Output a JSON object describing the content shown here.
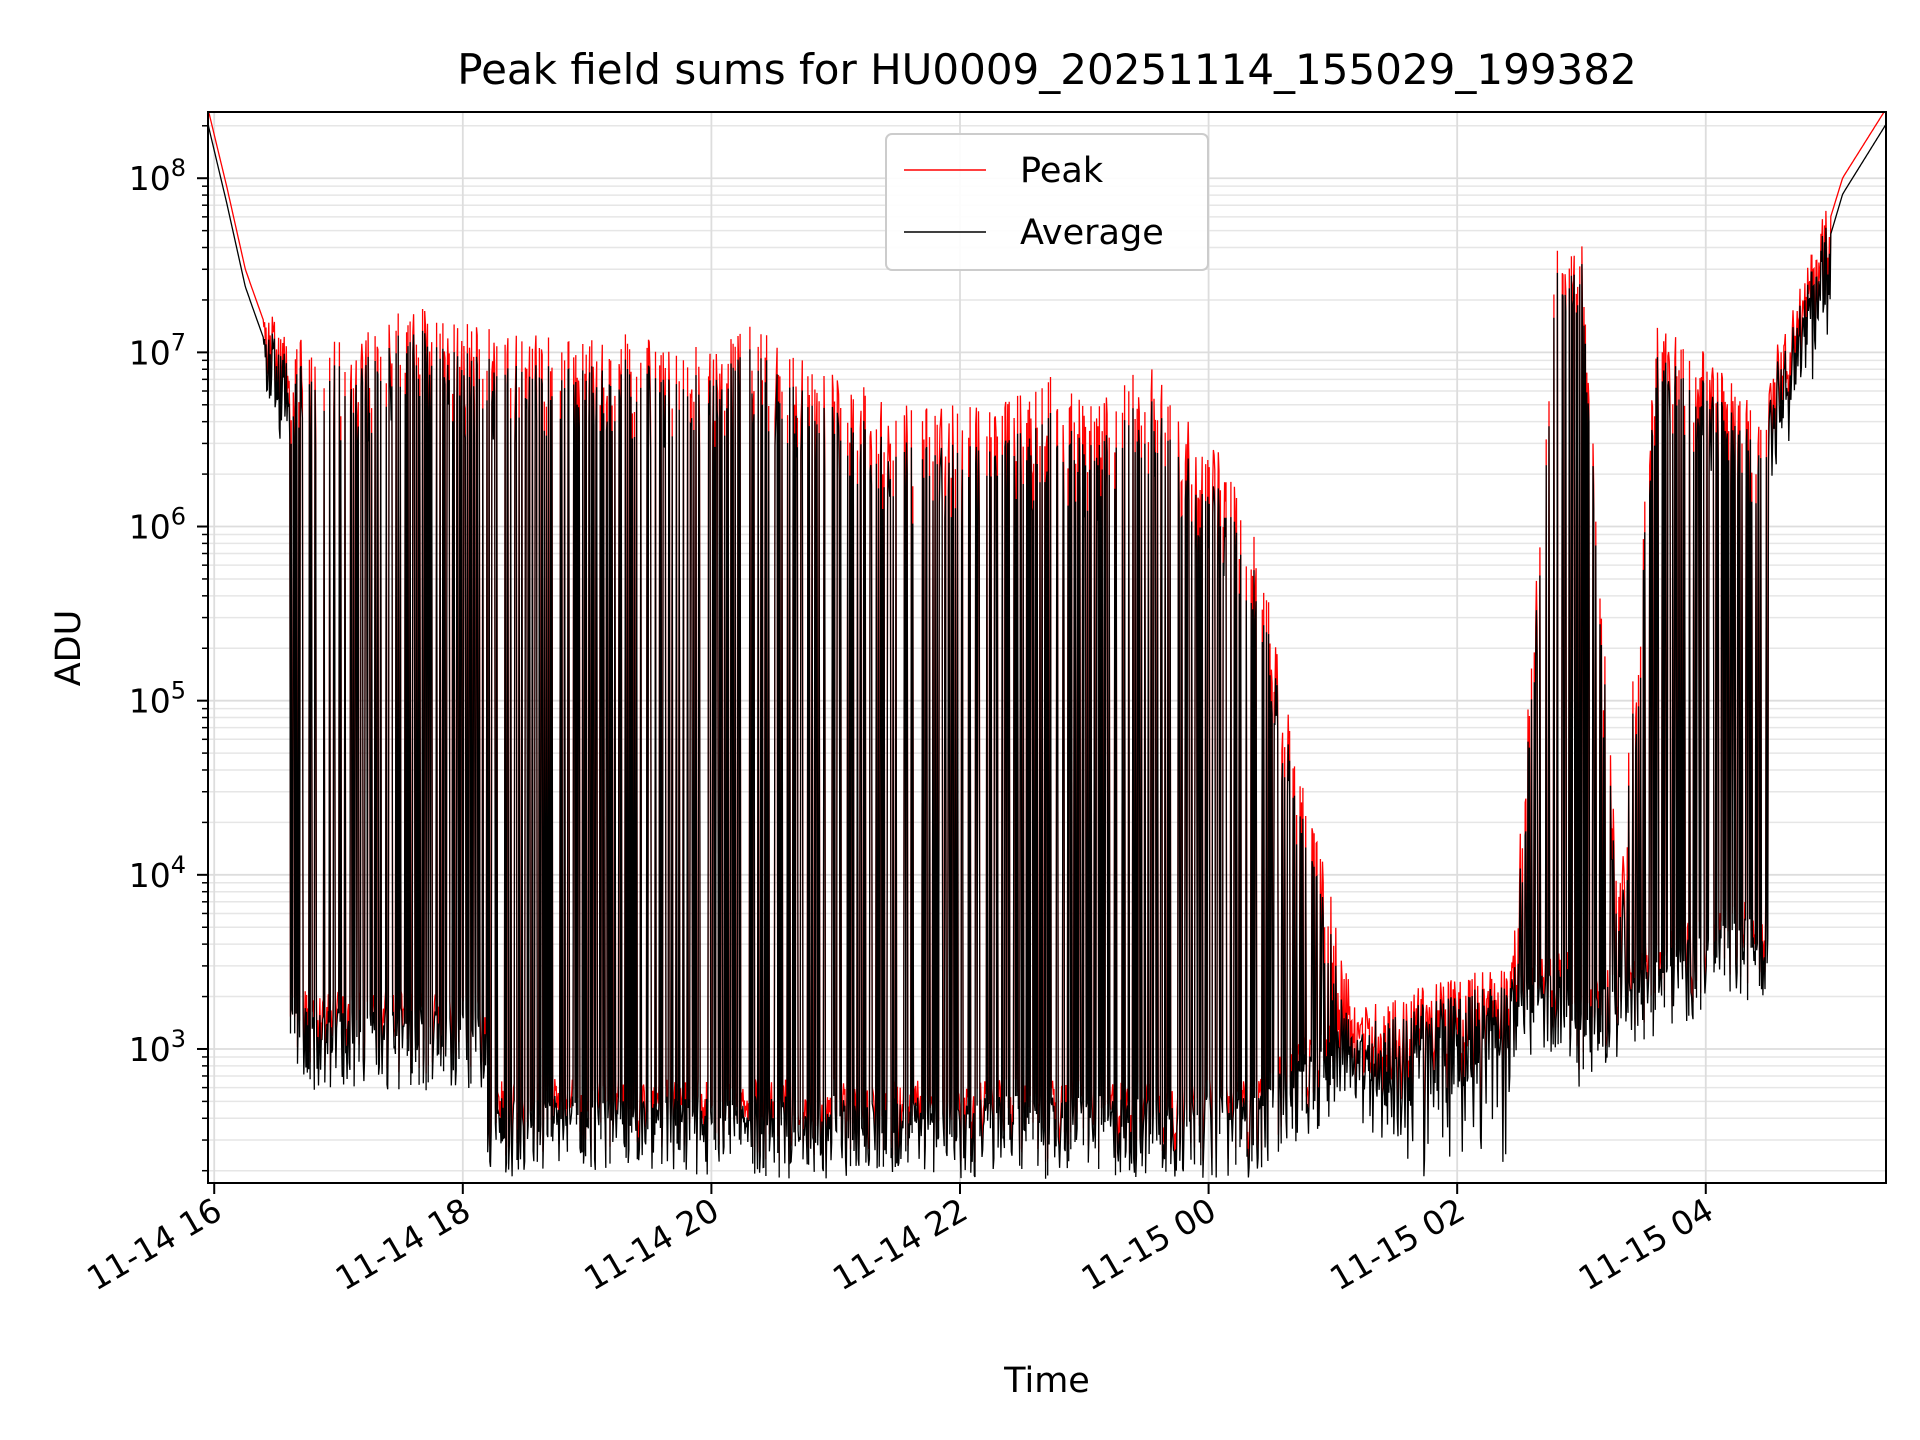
{
  "chart_data": {
    "type": "line",
    "title": "Peak field sums for HU0009_20251114_155029_199382",
    "xlabel": "Time",
    "ylabel": "ADU",
    "yscale": "log",
    "ylim": [
      170,
      240000000
    ],
    "xlim_hours": [
      15.95,
      29.45
    ],
    "grid": true,
    "legend_position": "top-center",
    "x_ticks": [
      {
        "hour": 16,
        "label": "11-14 16"
      },
      {
        "hour": 18,
        "label": "11-14 18"
      },
      {
        "hour": 20,
        "label": "11-14 20"
      },
      {
        "hour": 22,
        "label": "11-14 22"
      },
      {
        "hour": 24,
        "label": "11-15 00"
      },
      {
        "hour": 26,
        "label": "11-15 02"
      },
      {
        "hour": 28,
        "label": "11-15 04"
      }
    ],
    "y_ticks": [
      {
        "value": 1000,
        "base": "10",
        "exp": "3"
      },
      {
        "value": 10000,
        "base": "10",
        "exp": "4"
      },
      {
        "value": 100000,
        "base": "10",
        "exp": "5"
      },
      {
        "value": 1000000,
        "base": "10",
        "exp": "6"
      },
      {
        "value": 10000000,
        "base": "10",
        "exp": "7"
      },
      {
        "value": 100000000,
        "base": "10",
        "exp": "8"
      }
    ],
    "series": [
      {
        "name": "Peak",
        "color": "#ff0000",
        "points": [
          [
            15.95,
            250000000
          ],
          [
            16.1,
            90000000
          ],
          [
            16.25,
            30000000
          ],
          [
            16.4,
            15000000
          ],
          [
            16.55,
            9000000
          ],
          [
            16.7,
            12000000
          ],
          [
            16.85,
            8000000
          ],
          [
            17.0,
            14000000
          ],
          [
            17.3,
            13000000
          ],
          [
            17.6,
            20000000
          ],
          [
            18.0,
            15000000
          ],
          [
            18.5,
            14000000
          ],
          [
            19.0,
            12000000
          ],
          [
            19.4,
            13000000
          ],
          [
            19.8,
            10000000
          ],
          [
            20.3,
            16000000
          ],
          [
            20.8,
            9000000
          ],
          [
            21.3,
            6000000
          ],
          [
            21.8,
            5000000
          ],
          [
            22.3,
            5000000
          ],
          [
            22.7,
            7500000
          ],
          [
            23.1,
            5000000
          ],
          [
            23.5,
            9000000
          ],
          [
            23.9,
            3500000
          ],
          [
            24.3,
            2000000
          ],
          [
            24.7,
            50000
          ],
          [
            25.0,
            7000
          ],
          [
            25.3,
            1500
          ],
          [
            25.6,
            800
          ],
          [
            26.0,
            1200
          ],
          [
            26.4,
            1000
          ],
          [
            26.8,
            40000000
          ],
          [
            27.0,
            45000000
          ],
          [
            27.3,
            8000
          ],
          [
            27.6,
            15000000
          ],
          [
            28.0,
            10000000
          ],
          [
            28.4,
            5000000
          ],
          [
            28.8,
            20000000
          ],
          [
            29.1,
            100000000
          ],
          [
            29.45,
            250000000
          ]
        ],
        "dips": [
          [
            16.7,
            1500
          ],
          [
            17.0,
            600
          ],
          [
            17.4,
            900
          ],
          [
            17.8,
            700
          ],
          [
            18.3,
            500
          ],
          [
            18.8,
            300
          ],
          [
            19.3,
            250
          ],
          [
            19.8,
            260
          ],
          [
            20.3,
            250
          ],
          [
            20.8,
            270
          ],
          [
            21.3,
            260
          ],
          [
            21.8,
            270
          ],
          [
            22.3,
            300
          ],
          [
            22.8,
            230
          ],
          [
            23.3,
            270
          ],
          [
            23.8,
            260
          ],
          [
            24.3,
            300
          ],
          [
            24.7,
            350
          ],
          [
            25.1,
            500
          ],
          [
            25.6,
            700
          ],
          [
            26.0,
            600
          ],
          [
            26.5,
            500
          ],
          [
            26.9,
            450
          ],
          [
            27.3,
            700
          ],
          [
            27.7,
            600
          ],
          [
            28.2,
            2000
          ]
        ]
      },
      {
        "name": "Average",
        "color": "#000000",
        "points": [
          [
            15.95,
            240000000
          ],
          [
            16.1,
            85000000
          ],
          [
            16.25,
            28000000
          ],
          [
            16.4,
            14000000
          ],
          [
            16.55,
            8000000
          ],
          [
            16.7,
            10000000
          ],
          [
            16.85,
            7000000
          ],
          [
            17.0,
            12000000
          ],
          [
            17.3,
            11000000
          ],
          [
            17.6,
            18000000
          ],
          [
            18.0,
            12000000
          ],
          [
            18.5,
            11000000
          ],
          [
            19.0,
            10000000
          ],
          [
            19.4,
            11000000
          ],
          [
            19.8,
            8000000
          ],
          [
            20.3,
            14000000
          ],
          [
            20.8,
            7000000
          ],
          [
            21.3,
            4500000
          ],
          [
            21.8,
            3500000
          ],
          [
            22.3,
            3500000
          ],
          [
            22.7,
            5500000
          ],
          [
            23.1,
            3500000
          ],
          [
            23.5,
            7000000
          ],
          [
            23.9,
            2500000
          ],
          [
            24.3,
            1500000
          ],
          [
            24.7,
            40000
          ],
          [
            25.0,
            5000
          ],
          [
            25.3,
            1000
          ],
          [
            25.6,
            600
          ],
          [
            26.0,
            900
          ],
          [
            26.4,
            700
          ],
          [
            26.8,
            35000000
          ],
          [
            27.0,
            42000000
          ],
          [
            27.3,
            6000
          ],
          [
            27.6,
            12000000
          ],
          [
            28.0,
            8000000
          ],
          [
            28.4,
            4000000
          ],
          [
            28.8,
            18000000
          ],
          [
            29.1,
            95000000
          ],
          [
            29.45,
            240000000
          ]
        ]
      }
    ]
  }
}
